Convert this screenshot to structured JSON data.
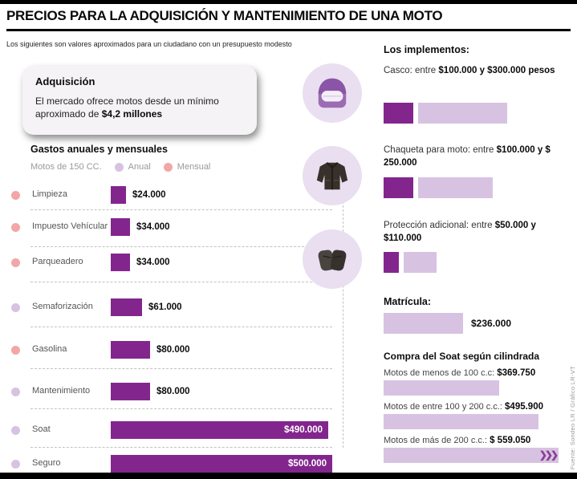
{
  "colors": {
    "dark_purple": "#82268e",
    "light_purple": "#d7c3e1",
    "pink": "#f2a6a6",
    "circle_bg": "#e9dff0"
  },
  "header": {
    "title": "PRECIOS PARA LA ADQUISICIÓN Y MANTENIMIENTO DE UNA MOTO",
    "subtitle": "Los siguientes son valores aproximados para un ciudadano con un presupuesto modesto"
  },
  "acquisition": {
    "title": "Adquisición",
    "text": "El mercado ofrece motos desde un mínimo aproximado de ",
    "highlight": "$4,2 millones"
  },
  "chart_data": [
    {
      "type": "bar",
      "title": "Gastos anuales y mensuales",
      "subtitle": "Motos de 150 CC.",
      "unit": "COP",
      "orientation": "horizontal",
      "legend": [
        {
          "label": "Anual",
          "color": "#d7c3e1"
        },
        {
          "label": "Mensual",
          "color": "#f2a6a6"
        }
      ],
      "items": [
        {
          "label": "Limpieza",
          "value": "$24.000",
          "amount": 24000,
          "period": "Mensual",
          "dot_color": "#f2a6a6"
        },
        {
          "label": "Impuesto Vehícular",
          "value": "$34.000",
          "amount": 34000,
          "period": "Mensual",
          "dot_color": "#f2a6a6"
        },
        {
          "label": "Parqueadero",
          "value": "$34.000",
          "amount": 34000,
          "period": "Mensual",
          "dot_color": "#f2a6a6"
        },
        {
          "label": "Semaforización",
          "value": "$61.000",
          "amount": 61000,
          "period": "Anual",
          "dot_color": "#d7c3e1"
        },
        {
          "label": "Gasolina",
          "value": "$80.000",
          "amount": 80000,
          "period": "Mensual",
          "dot_color": "#f2a6a6"
        },
        {
          "label": "Mantenimiento",
          "value": "$80.000",
          "amount": 80000,
          "period": "Anual",
          "dot_color": "#d7c3e1"
        },
        {
          "label": "Soat",
          "value": "$490.000",
          "amount": 490000,
          "period": "Anual",
          "dot_color": "#d7c3e1"
        },
        {
          "label": "Seguro",
          "value": "$500.000",
          "amount": 500000,
          "period": "Anual",
          "dot_color": "#d7c3e1"
        }
      ]
    },
    {
      "type": "bar",
      "title": "Los implementos:",
      "unit": "COP",
      "items": [
        {
          "icon": "helmet-icon",
          "label": "Casco: entre ",
          "range_text": "$100.000 y $300.000 pesos",
          "min": 100000,
          "max": 300000
        },
        {
          "icon": "jacket-icon",
          "label": "Chaqueta para moto: entre ",
          "range_text": "$100.000 y $ 250.000",
          "min": 100000,
          "max": 250000
        },
        {
          "icon": "gloves-icon",
          "label": "Protección adicional: entre ",
          "range_text": "$50.000 y $110.000",
          "min": 50000,
          "max": 110000
        }
      ]
    },
    {
      "type": "bar",
      "title": "Matrícula:",
      "unit": "COP",
      "items": [
        {
          "label": "Matrícula",
          "value": "$236.000",
          "amount": 236000
        }
      ]
    },
    {
      "type": "bar",
      "title": "Compra del Soat según cilindrada",
      "unit": "COP",
      "items": [
        {
          "label": "Motos de menos de 100 c.c: ",
          "value": "$369.750",
          "amount": 369750
        },
        {
          "label": "Motos de entre 100 y 200 c.c.: ",
          "value": "$495.900",
          "amount": 495900
        },
        {
          "label": "Motos de más de 200 c.c.: ",
          "value": "$ 559.050",
          "amount": 559050,
          "continues_marker": "❯❯❯"
        }
      ]
    }
  ],
  "credit": "Fuente: Sondeo LR / Gráfico LR-VT"
}
